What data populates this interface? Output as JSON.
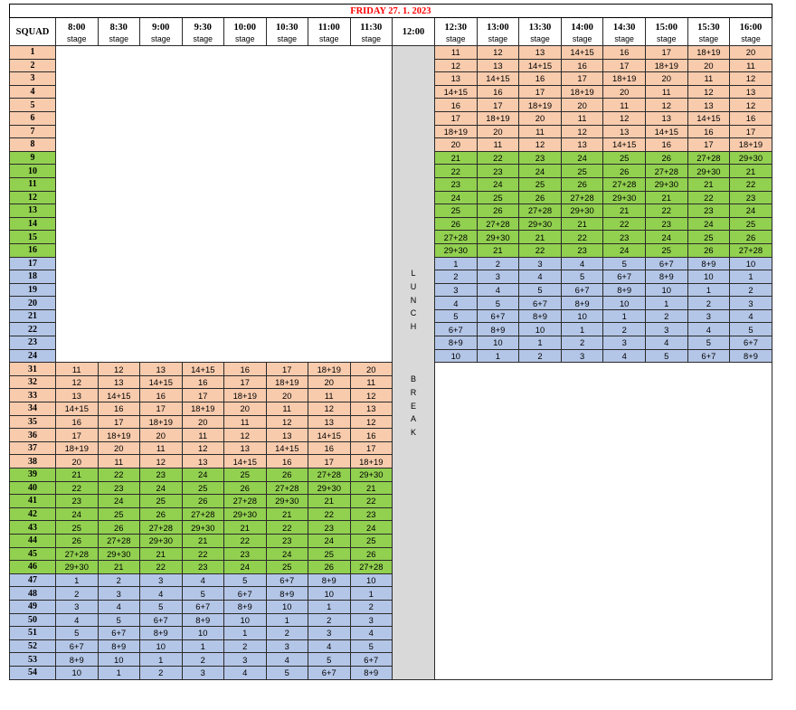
{
  "sheet": {
    "title": "FRIDAY 27. 1. 2023",
    "squad_header": "SQUAD",
    "lunch_header": "12:00",
    "lunch_break_letters_1": [
      "L",
      "U",
      "N",
      "C",
      "H"
    ],
    "lunch_break_letters_2": [
      "B",
      "R",
      "E",
      "A",
      "K"
    ],
    "times_left": [
      "8:00",
      "8:30",
      "9:00",
      "9:30",
      "10:00",
      "10:30",
      "11:00",
      "11:30"
    ],
    "times_right": [
      "12:30",
      "13:00",
      "13:30",
      "14:00",
      "14:30",
      "15:00",
      "15:30",
      "16:00"
    ],
    "stage_label": "stage"
  },
  "colors": {
    "orange": "#f8cbad",
    "green": "#92d050",
    "blue": "#b4c6e7",
    "lunch_grey": "#d9d9d9",
    "title_red": "#ff0000"
  },
  "afternoon_rows": [
    {
      "squad": "1",
      "color": "orange",
      "cells": [
        "11",
        "12",
        "13",
        "14+15",
        "16",
        "17",
        "18+19",
        "20"
      ]
    },
    {
      "squad": "2",
      "color": "orange",
      "cells": [
        "12",
        "13",
        "14+15",
        "16",
        "17",
        "18+19",
        "20",
        "11"
      ]
    },
    {
      "squad": "3",
      "color": "orange",
      "cells": [
        "13",
        "14+15",
        "16",
        "17",
        "18+19",
        "20",
        "11",
        "12"
      ]
    },
    {
      "squad": "4",
      "color": "orange",
      "cells": [
        "14+15",
        "16",
        "17",
        "18+19",
        "20",
        "11",
        "12",
        "13"
      ]
    },
    {
      "squad": "5",
      "color": "orange",
      "cells": [
        "16",
        "17",
        "18+19",
        "20",
        "11",
        "12",
        "13",
        "12"
      ]
    },
    {
      "squad": "6",
      "color": "orange",
      "cells": [
        "17",
        "18+19",
        "20",
        "11",
        "12",
        "13",
        "14+15",
        "16"
      ]
    },
    {
      "squad": "7",
      "color": "orange",
      "cells": [
        "18+19",
        "20",
        "11",
        "12",
        "13",
        "14+15",
        "16",
        "17"
      ]
    },
    {
      "squad": "8",
      "color": "orange",
      "cells": [
        "20",
        "11",
        "12",
        "13",
        "14+15",
        "16",
        "17",
        "18+19"
      ]
    },
    {
      "squad": "9",
      "color": "green",
      "cells": [
        "21",
        "22",
        "23",
        "24",
        "25",
        "26",
        "27+28",
        "29+30"
      ]
    },
    {
      "squad": "10",
      "color": "green",
      "cells": [
        "22",
        "23",
        "24",
        "25",
        "26",
        "27+28",
        "29+30",
        "21"
      ]
    },
    {
      "squad": "11",
      "color": "green",
      "cells": [
        "23",
        "24",
        "25",
        "26",
        "27+28",
        "29+30",
        "21",
        "22"
      ]
    },
    {
      "squad": "12",
      "color": "green",
      "cells": [
        "24",
        "25",
        "26",
        "27+28",
        "29+30",
        "21",
        "22",
        "23"
      ]
    },
    {
      "squad": "13",
      "color": "green",
      "cells": [
        "25",
        "26",
        "27+28",
        "29+30",
        "21",
        "22",
        "23",
        "24"
      ]
    },
    {
      "squad": "14",
      "color": "green",
      "cells": [
        "26",
        "27+28",
        "29+30",
        "21",
        "22",
        "23",
        "24",
        "25"
      ]
    },
    {
      "squad": "15",
      "color": "green",
      "cells": [
        "27+28",
        "29+30",
        "21",
        "22",
        "23",
        "24",
        "25",
        "26"
      ]
    },
    {
      "squad": "16",
      "color": "green",
      "cells": [
        "29+30",
        "21",
        "22",
        "23",
        "24",
        "25",
        "26",
        "27+28"
      ]
    },
    {
      "squad": "17",
      "color": "blue",
      "cells": [
        "1",
        "2",
        "3",
        "4",
        "5",
        "6+7",
        "8+9",
        "10"
      ]
    },
    {
      "squad": "18",
      "color": "blue",
      "cells": [
        "2",
        "3",
        "4",
        "5",
        "6+7",
        "8+9",
        "10",
        "1"
      ]
    },
    {
      "squad": "19",
      "color": "blue",
      "cells": [
        "3",
        "4",
        "5",
        "6+7",
        "8+9",
        "10",
        "1",
        "2"
      ]
    },
    {
      "squad": "20",
      "color": "blue",
      "cells": [
        "4",
        "5",
        "6+7",
        "8+9",
        "10",
        "1",
        "2",
        "3"
      ]
    },
    {
      "squad": "21",
      "color": "blue",
      "cells": [
        "5",
        "6+7",
        "8+9",
        "10",
        "1",
        "2",
        "3",
        "4"
      ]
    },
    {
      "squad": "22",
      "color": "blue",
      "cells": [
        "6+7",
        "8+9",
        "10",
        "1",
        "2",
        "3",
        "4",
        "5"
      ]
    },
    {
      "squad": "23",
      "color": "blue",
      "cells": [
        "8+9",
        "10",
        "1",
        "2",
        "3",
        "4",
        "5",
        "6+7"
      ]
    },
    {
      "squad": "24",
      "color": "blue",
      "cells": [
        "10",
        "1",
        "2",
        "3",
        "4",
        "5",
        "6+7",
        "8+9"
      ]
    }
  ],
  "morning_rows": [
    {
      "squad": "31",
      "color": "orange",
      "cells": [
        "11",
        "12",
        "13",
        "14+15",
        "16",
        "17",
        "18+19",
        "20"
      ]
    },
    {
      "squad": "32",
      "color": "orange",
      "cells": [
        "12",
        "13",
        "14+15",
        "16",
        "17",
        "18+19",
        "20",
        "11"
      ]
    },
    {
      "squad": "33",
      "color": "orange",
      "cells": [
        "13",
        "14+15",
        "16",
        "17",
        "18+19",
        "20",
        "11",
        "12"
      ]
    },
    {
      "squad": "34",
      "color": "orange",
      "cells": [
        "14+15",
        "16",
        "17",
        "18+19",
        "20",
        "11",
        "12",
        "13"
      ]
    },
    {
      "squad": "35",
      "color": "orange",
      "cells": [
        "16",
        "17",
        "18+19",
        "20",
        "11",
        "12",
        "13",
        "12"
      ]
    },
    {
      "squad": "36",
      "color": "orange",
      "cells": [
        "17",
        "18+19",
        "20",
        "11",
        "12",
        "13",
        "14+15",
        "16"
      ]
    },
    {
      "squad": "37",
      "color": "orange",
      "cells": [
        "18+19",
        "20",
        "11",
        "12",
        "13",
        "14+15",
        "16",
        "17"
      ]
    },
    {
      "squad": "38",
      "color": "orange",
      "cells": [
        "20",
        "11",
        "12",
        "13",
        "14+15",
        "16",
        "17",
        "18+19"
      ]
    },
    {
      "squad": "39",
      "color": "green",
      "cells": [
        "21",
        "22",
        "23",
        "24",
        "25",
        "26",
        "27+28",
        "29+30"
      ]
    },
    {
      "squad": "40",
      "color": "green",
      "cells": [
        "22",
        "23",
        "24",
        "25",
        "26",
        "27+28",
        "29+30",
        "21"
      ]
    },
    {
      "squad": "41",
      "color": "green",
      "cells": [
        "23",
        "24",
        "25",
        "26",
        "27+28",
        "29+30",
        "21",
        "22"
      ]
    },
    {
      "squad": "42",
      "color": "green",
      "cells": [
        "24",
        "25",
        "26",
        "27+28",
        "29+30",
        "21",
        "22",
        "23"
      ]
    },
    {
      "squad": "43",
      "color": "green",
      "cells": [
        "25",
        "26",
        "27+28",
        "29+30",
        "21",
        "22",
        "23",
        "24"
      ]
    },
    {
      "squad": "44",
      "color": "green",
      "cells": [
        "26",
        "27+28",
        "29+30",
        "21",
        "22",
        "23",
        "24",
        "25"
      ]
    },
    {
      "squad": "45",
      "color": "green",
      "cells": [
        "27+28",
        "29+30",
        "21",
        "22",
        "23",
        "24",
        "25",
        "26"
      ]
    },
    {
      "squad": "46",
      "color": "green",
      "cells": [
        "29+30",
        "21",
        "22",
        "23",
        "24",
        "25",
        "26",
        "27+28"
      ]
    },
    {
      "squad": "47",
      "color": "blue",
      "cells": [
        "1",
        "2",
        "3",
        "4",
        "5",
        "6+7",
        "8+9",
        "10"
      ]
    },
    {
      "squad": "48",
      "color": "blue",
      "cells": [
        "2",
        "3",
        "4",
        "5",
        "6+7",
        "8+9",
        "10",
        "1"
      ]
    },
    {
      "squad": "49",
      "color": "blue",
      "cells": [
        "3",
        "4",
        "5",
        "6+7",
        "8+9",
        "10",
        "1",
        "2"
      ]
    },
    {
      "squad": "50",
      "color": "blue",
      "cells": [
        "4",
        "5",
        "6+7",
        "8+9",
        "10",
        "1",
        "2",
        "3"
      ]
    },
    {
      "squad": "51",
      "color": "blue",
      "cells": [
        "5",
        "6+7",
        "8+9",
        "10",
        "1",
        "2",
        "3",
        "4"
      ]
    },
    {
      "squad": "52",
      "color": "blue",
      "cells": [
        "6+7",
        "8+9",
        "10",
        "1",
        "2",
        "3",
        "4",
        "5"
      ]
    },
    {
      "squad": "53",
      "color": "blue",
      "cells": [
        "8+9",
        "10",
        "1",
        "2",
        "3",
        "4",
        "5",
        "6+7"
      ]
    },
    {
      "squad": "54",
      "color": "blue",
      "cells": [
        "10",
        "1",
        "2",
        "3",
        "4",
        "5",
        "6+7",
        "8+9"
      ]
    }
  ]
}
